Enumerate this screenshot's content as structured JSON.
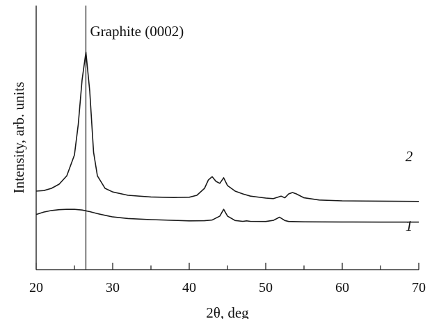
{
  "chart_data": {
    "type": "line",
    "title": "",
    "xlabel": "2θ, deg",
    "ylabel": "Intensity, arb. units",
    "xlim": [
      20,
      70
    ],
    "ylim": [
      0,
      1
    ],
    "x_ticks": [
      "20",
      "30",
      "40",
      "50",
      "60",
      "70"
    ],
    "y_ticks": [],
    "grid": false,
    "legend": "none",
    "annotations": [
      {
        "text": "Graphite (0002)",
        "x": 26.5,
        "kind": "vertical-reference-line"
      }
    ],
    "series": [
      {
        "name": "1",
        "x": [
          20,
          21,
          22,
          23,
          24,
          25,
          26,
          27,
          28,
          29,
          30,
          32,
          35,
          38,
          40,
          42,
          43,
          44,
          44.5,
          45,
          46,
          47,
          47.5,
          48,
          50,
          51,
          51.8,
          52.5,
          53,
          55,
          60,
          65,
          70
        ],
        "values": [
          0.18,
          0.195,
          0.205,
          0.21,
          0.212,
          0.212,
          0.208,
          0.198,
          0.185,
          0.175,
          0.165,
          0.155,
          0.148,
          0.143,
          0.14,
          0.141,
          0.145,
          0.17,
          0.212,
          0.17,
          0.142,
          0.137,
          0.14,
          0.137,
          0.136,
          0.143,
          0.163,
          0.142,
          0.136,
          0.134,
          0.133,
          0.132,
          0.132
        ]
      },
      {
        "name": "2",
        "x": [
          20,
          21,
          22,
          23,
          24,
          25,
          25.5,
          26,
          26.5,
          27,
          27.5,
          28,
          29,
          30,
          32,
          35,
          38,
          40,
          41,
          42,
          42.5,
          43,
          43.5,
          44,
          44.5,
          45,
          46,
          47,
          48,
          50,
          51,
          52,
          52.5,
          53,
          53.5,
          54,
          55,
          57,
          60,
          65,
          70
        ],
        "values": [
          0.5,
          0.502,
          0.51,
          0.525,
          0.555,
          0.63,
          0.74,
          0.9,
          1.0,
          0.86,
          0.64,
          0.555,
          0.51,
          0.497,
          0.485,
          0.479,
          0.477,
          0.478,
          0.485,
          0.51,
          0.54,
          0.552,
          0.535,
          0.528,
          0.548,
          0.52,
          0.5,
          0.49,
          0.482,
          0.475,
          0.473,
          0.482,
          0.476,
          0.49,
          0.495,
          0.49,
          0.476,
          0.468,
          0.465,
          0.464,
          0.463
        ]
      }
    ]
  }
}
